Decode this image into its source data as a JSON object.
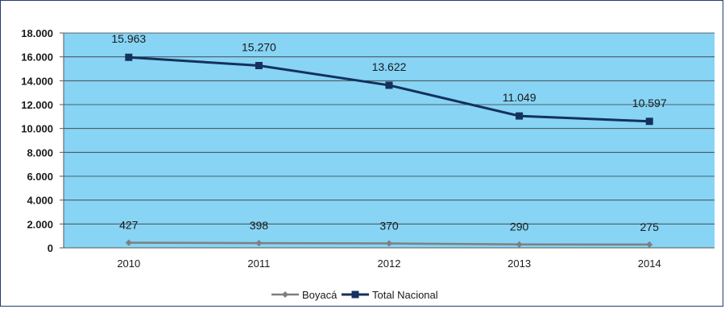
{
  "chart_data": {
    "type": "line",
    "categories": [
      "2010",
      "2011",
      "2012",
      "2013",
      "2014"
    ],
    "ylim": [
      0,
      18000
    ],
    "yticks": [
      0,
      2000,
      4000,
      6000,
      8000,
      10000,
      12000,
      14000,
      16000,
      18000
    ],
    "ytick_labels": [
      "0",
      "2.000",
      "4.000",
      "6.000",
      "8.000",
      "10.000",
      "12.000",
      "14.000",
      "16.000",
      "18.000"
    ],
    "grid": "horizontal",
    "legend_position": "bottom",
    "plot_background": "#87d4f5",
    "series": [
      {
        "name": "Boyacá",
        "values": [
          427,
          398,
          370,
          290,
          275
        ],
        "labels": [
          "427",
          "398",
          "370",
          "290",
          "275"
        ],
        "color": "#7f7f7f",
        "marker": "diamond"
      },
      {
        "name": "Total Nacional",
        "values": [
          15963,
          15270,
          13622,
          11049,
          10597
        ],
        "labels": [
          "15.963",
          "15.270",
          "13.622",
          "11.049",
          "10.597"
        ],
        "color": "#13315c",
        "marker": "square"
      }
    ]
  }
}
